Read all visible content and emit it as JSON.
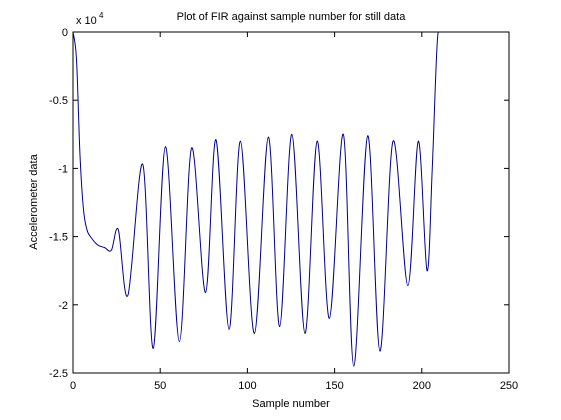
{
  "chart_data": {
    "type": "line",
    "title": "Plot of FIR against sample number for still data",
    "xlabel": "Sample number",
    "ylabel": "Accelerometer data",
    "axis_multiplier": {
      "base": "x 10",
      "exponent": "4"
    },
    "x": [
      0,
      2,
      4,
      6,
      8,
      10,
      14,
      18,
      22,
      26,
      31.5,
      40,
      46,
      53,
      61,
      68,
      76,
      82,
      89.5,
      96,
      104,
      112,
      118.5,
      125.5,
      133,
      140,
      147,
      155,
      161,
      169,
      176,
      183.5,
      192,
      198,
      203,
      206,
      209,
      212,
      215
    ],
    "series": [
      {
        "name": "FIR",
        "color": "#00008b",
        "values": [
          0,
          -0.2,
          -0.9,
          -1.3,
          -1.45,
          -1.5,
          -1.56,
          -1.58,
          -1.6,
          -1.45,
          -1.93,
          -0.97,
          -2.32,
          -0.84,
          -2.27,
          -0.85,
          -1.91,
          -0.79,
          -2.18,
          -0.8,
          -2.21,
          -0.77,
          -2.16,
          -0.75,
          -2.21,
          -0.8,
          -2.1,
          -0.75,
          -2.45,
          -0.76,
          -2.34,
          -0.8,
          -1.86,
          -0.8,
          -1.75,
          -1.0,
          -0.05,
          0,
          0
        ]
      }
    ],
    "xlim": [
      0,
      250
    ],
    "xticks": [
      0,
      50,
      100,
      150,
      200,
      250
    ],
    "ylim": [
      -2.5,
      0
    ],
    "yticks": [
      -2.5,
      -2,
      -1.5,
      -1,
      -0.5,
      0
    ],
    "grid": false
  }
}
